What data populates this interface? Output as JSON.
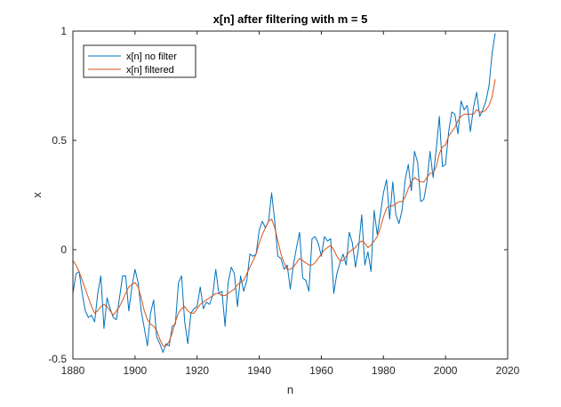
{
  "chart_data": {
    "type": "line",
    "title": "x[n] after filtering with m = 5",
    "xlabel": "n",
    "ylabel": "x",
    "xlim": [
      1880,
      2020
    ],
    "ylim": [
      -0.5,
      1
    ],
    "xticks": [
      1880,
      1900,
      1920,
      1940,
      1960,
      1980,
      2000,
      2020
    ],
    "yticks": [
      -0.5,
      0,
      0.5,
      1
    ],
    "ytick_labels": [
      "-0.5",
      "0",
      "0.5",
      "1"
    ],
    "grid": false,
    "legend_position": "top-left",
    "series": [
      {
        "name": "x[n] no filter",
        "color": "#0072BD",
        "x": [
          1880,
          1881,
          1882,
          1883,
          1884,
          1885,
          1886,
          1887,
          1888,
          1889,
          1890,
          1891,
          1892,
          1893,
          1894,
          1895,
          1896,
          1897,
          1898,
          1899,
          1900,
          1901,
          1902,
          1903,
          1904,
          1905,
          1906,
          1907,
          1908,
          1909,
          1910,
          1911,
          1912,
          1913,
          1914,
          1915,
          1916,
          1917,
          1918,
          1919,
          1920,
          1921,
          1922,
          1923,
          1924,
          1925,
          1926,
          1927,
          1928,
          1929,
          1930,
          1931,
          1932,
          1933,
          1934,
          1935,
          1936,
          1937,
          1938,
          1939,
          1940,
          1941,
          1942,
          1943,
          1944,
          1945,
          1946,
          1947,
          1948,
          1949,
          1950,
          1951,
          1952,
          1953,
          1954,
          1955,
          1956,
          1957,
          1958,
          1959,
          1960,
          1961,
          1962,
          1963,
          1964,
          1965,
          1966,
          1967,
          1968,
          1969,
          1970,
          1971,
          1972,
          1973,
          1974,
          1975,
          1976,
          1977,
          1978,
          1979,
          1980,
          1981,
          1982,
          1983,
          1984,
          1985,
          1986,
          1987,
          1988,
          1989,
          1990,
          1991,
          1992,
          1993,
          1994,
          1995,
          1996,
          1997,
          1998,
          1999,
          2000,
          2001,
          2002,
          2003,
          2004,
          2005,
          2006,
          2007,
          2008,
          2009,
          2010,
          2011,
          2012,
          2013,
          2014,
          2015,
          2016
        ],
        "y": [
          -0.2,
          -0.11,
          -0.1,
          -0.2,
          -0.28,
          -0.31,
          -0.3,
          -0.33,
          -0.2,
          -0.12,
          -0.36,
          -0.22,
          -0.27,
          -0.31,
          -0.32,
          -0.22,
          -0.12,
          -0.12,
          -0.28,
          -0.17,
          -0.09,
          -0.15,
          -0.28,
          -0.36,
          -0.44,
          -0.29,
          -0.23,
          -0.4,
          -0.43,
          -0.47,
          -0.43,
          -0.44,
          -0.35,
          -0.34,
          -0.15,
          -0.12,
          -0.33,
          -0.43,
          -0.29,
          -0.27,
          -0.26,
          -0.17,
          -0.27,
          -0.24,
          -0.25,
          -0.21,
          -0.09,
          -0.2,
          -0.19,
          -0.35,
          -0.15,
          -0.08,
          -0.11,
          -0.26,
          -0.12,
          -0.19,
          -0.14,
          -0.02,
          -0.03,
          -0.02,
          0.09,
          0.13,
          0.1,
          0.13,
          0.26,
          0.13,
          -0.03,
          -0.04,
          -0.09,
          -0.07,
          -0.18,
          -0.07,
          0.01,
          0.08,
          -0.13,
          -0.14,
          -0.19,
          0.05,
          0.06,
          0.03,
          -0.03,
          0.06,
          0.04,
          0.05,
          -0.2,
          -0.11,
          -0.06,
          -0.02,
          -0.07,
          0.08,
          0.03,
          -0.08,
          0.01,
          0.16,
          -0.07,
          -0.01,
          -0.1,
          0.18,
          0.07,
          0.16,
          0.26,
          0.32,
          0.14,
          0.31,
          0.16,
          0.12,
          0.18,
          0.32,
          0.39,
          0.27,
          0.45,
          0.4,
          0.22,
          0.23,
          0.31,
          0.45,
          0.33,
          0.46,
          0.61,
          0.38,
          0.39,
          0.54,
          0.63,
          0.62,
          0.53,
          0.68,
          0.64,
          0.66,
          0.54,
          0.65,
          0.72,
          0.61,
          0.64,
          0.68,
          0.75,
          0.9,
          0.99
        ]
      },
      {
        "name": "x[n] filtered",
        "color": "#D95319",
        "x": [
          1880,
          1881,
          1882,
          1883,
          1884,
          1885,
          1886,
          1887,
          1888,
          1889,
          1890,
          1891,
          1892,
          1893,
          1894,
          1895,
          1896,
          1897,
          1898,
          1899,
          1900,
          1901,
          1902,
          1903,
          1904,
          1905,
          1906,
          1907,
          1908,
          1909,
          1910,
          1911,
          1912,
          1913,
          1914,
          1915,
          1916,
          1917,
          1918,
          1919,
          1920,
          1921,
          1922,
          1923,
          1924,
          1925,
          1926,
          1927,
          1928,
          1929,
          1930,
          1931,
          1932,
          1933,
          1934,
          1935,
          1936,
          1937,
          1938,
          1939,
          1940,
          1941,
          1942,
          1943,
          1944,
          1945,
          1946,
          1947,
          1948,
          1949,
          1950,
          1951,
          1952,
          1953,
          1954,
          1955,
          1956,
          1957,
          1958,
          1959,
          1960,
          1961,
          1962,
          1963,
          1964,
          1965,
          1966,
          1967,
          1968,
          1969,
          1970,
          1971,
          1972,
          1973,
          1974,
          1975,
          1976,
          1977,
          1978,
          1979,
          1980,
          1981,
          1982,
          1983,
          1984,
          1985,
          1986,
          1987,
          1988,
          1989,
          1990,
          1991,
          1992,
          1993,
          1994,
          1995,
          1996,
          1997,
          1998,
          1999,
          2000,
          2001,
          2002,
          2003,
          2004,
          2005,
          2006,
          2007,
          2008,
          2009,
          2010,
          2011,
          2012,
          2013,
          2014,
          2015,
          2016
        ],
        "y": [
          -0.05,
          -0.07,
          -0.1,
          -0.14,
          -0.18,
          -0.22,
          -0.26,
          -0.29,
          -0.28,
          -0.26,
          -0.25,
          -0.26,
          -0.28,
          -0.3,
          -0.28,
          -0.26,
          -0.23,
          -0.2,
          -0.17,
          -0.16,
          -0.15,
          -0.17,
          -0.22,
          -0.28,
          -0.32,
          -0.34,
          -0.35,
          -0.37,
          -0.41,
          -0.44,
          -0.44,
          -0.42,
          -0.38,
          -0.33,
          -0.29,
          -0.27,
          -0.26,
          -0.28,
          -0.29,
          -0.29,
          -0.27,
          -0.25,
          -0.24,
          -0.23,
          -0.22,
          -0.21,
          -0.2,
          -0.2,
          -0.21,
          -0.21,
          -0.2,
          -0.19,
          -0.18,
          -0.16,
          -0.15,
          -0.14,
          -0.11,
          -0.08,
          -0.05,
          -0.02,
          0.03,
          0.07,
          0.1,
          0.13,
          0.14,
          0.1,
          0.04,
          -0.02,
          -0.06,
          -0.09,
          -0.09,
          -0.08,
          -0.06,
          -0.04,
          -0.05,
          -0.06,
          -0.07,
          -0.07,
          -0.06,
          -0.04,
          -0.02,
          0.0,
          0.01,
          0.02,
          0.0,
          -0.03,
          -0.05,
          -0.05,
          -0.03,
          -0.01,
          0.0,
          0.01,
          0.03,
          0.04,
          0.03,
          0.01,
          0.02,
          0.04,
          0.06,
          0.1,
          0.15,
          0.19,
          0.2,
          0.2,
          0.21,
          0.22,
          0.22,
          0.24,
          0.28,
          0.31,
          0.33,
          0.32,
          0.31,
          0.31,
          0.33,
          0.35,
          0.35,
          0.38,
          0.44,
          0.47,
          0.48,
          0.52,
          0.54,
          0.56,
          0.59,
          0.61,
          0.62,
          0.62,
          0.62,
          0.62,
          0.64,
          0.63,
          0.63,
          0.64,
          0.66,
          0.7,
          0.78
        ]
      }
    ]
  }
}
